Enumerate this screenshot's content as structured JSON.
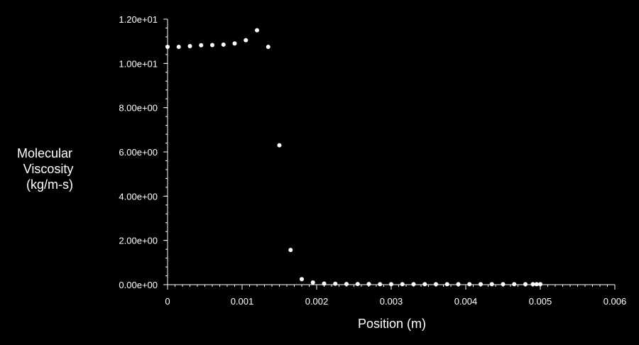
{
  "colors": {
    "background": "#000000",
    "foreground": "#ffffff"
  },
  "chart_data": {
    "type": "scatter",
    "title": "",
    "xlabel": "Position (m)",
    "ylabel_lines": [
      "Molecular",
      "Viscosity",
      "(kg/m-s)"
    ],
    "xlim": [
      0,
      0.006
    ],
    "ylim": [
      0,
      12
    ],
    "x_ticks": [
      0,
      0.001,
      0.002,
      0.003,
      0.004,
      0.005,
      0.006
    ],
    "x_tick_labels": [
      "0",
      "0.001",
      "0.002",
      "0.003",
      "0.004",
      "0.005",
      "0.006"
    ],
    "y_ticks": [
      0,
      2,
      4,
      6,
      8,
      10,
      12
    ],
    "y_tick_labels": [
      "0.00e+00",
      "2.00e+00",
      "4.00e+00",
      "6.00e+00",
      "8.00e+00",
      "1.00e+01",
      "1.20e+01"
    ],
    "y_minor_tick_step": 0.4,
    "x_minor_tick_step": 0.0001,
    "grid": false,
    "legend": "none",
    "x": [
      0,
      0.00015,
      0.0003,
      0.00045,
      0.0006,
      0.00075,
      0.0009,
      0.00105,
      0.0012,
      0.00135,
      0.0015,
      0.00165,
      0.0018,
      0.00195,
      0.0021,
      0.00225,
      0.0024,
      0.00255,
      0.0027,
      0.00285,
      0.003,
      0.00315,
      0.0033,
      0.00345,
      0.0036,
      0.00375,
      0.0039,
      0.00405,
      0.0042,
      0.00435,
      0.0045,
      0.00465,
      0.0048,
      0.0049,
      0.00495,
      0.005
    ],
    "y": [
      10.75,
      10.75,
      10.78,
      10.82,
      10.83,
      10.85,
      10.9,
      11.05,
      11.5,
      10.75,
      6.3,
      1.57,
      0.25,
      0.1,
      0.05,
      0.04,
      0.03,
      0.03,
      0.03,
      0.02,
      0.02,
      0.02,
      0.02,
      0.02,
      0.02,
      0.02,
      0.02,
      0.02,
      0.02,
      0.02,
      0.02,
      0.02,
      0.02,
      0.02,
      0.02,
      0.02
    ]
  }
}
